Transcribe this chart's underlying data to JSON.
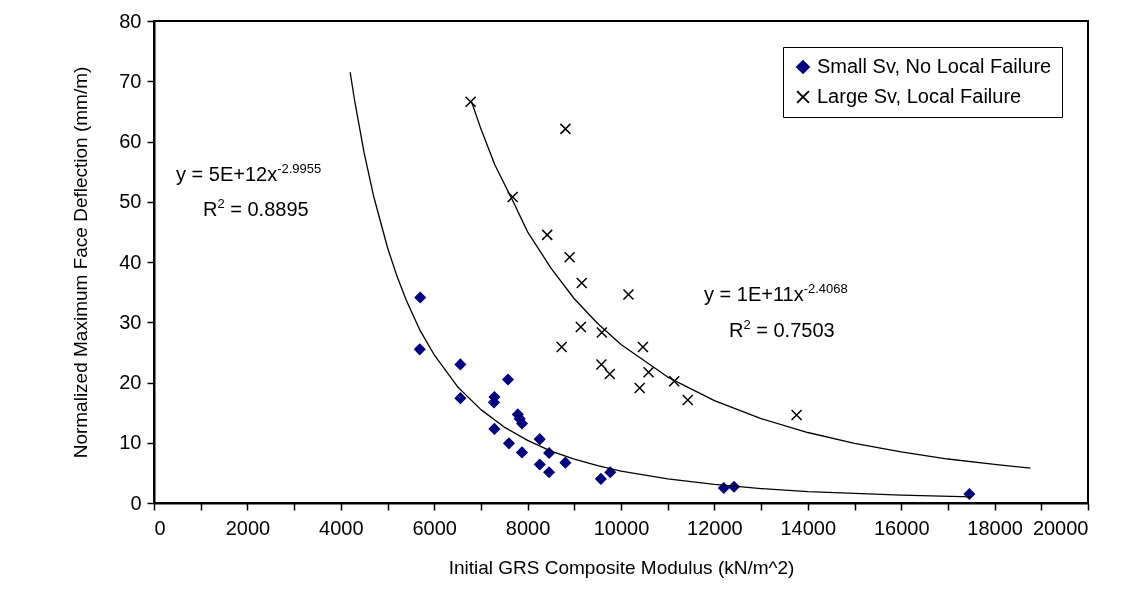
{
  "chart_data": {
    "type": "scatter",
    "xlabel": "Initial GRS Composite Modulus (kN/m^2)",
    "ylabel": "Normalized Maximum Face Deflection (mm/m)",
    "xlim": [
      0,
      20000
    ],
    "ylim": [
      0,
      80
    ],
    "xticks": [
      0,
      {
        "value": 1000,
        "label": null
      },
      2000,
      {
        "value": 3000,
        "label": null
      },
      4000,
      {
        "value": 5000,
        "label": null
      },
      6000,
      {
        "value": 7000,
        "label": null
      },
      8000,
      {
        "value": 9000,
        "label": null
      },
      10000,
      {
        "value": 11000,
        "label": null
      },
      12000,
      {
        "value": 13000,
        "label": null
      },
      14000,
      {
        "value": 15000,
        "label": null
      },
      16000,
      {
        "value": 17000,
        "label": null
      },
      18000,
      {
        "value": 19000,
        "label": null
      },
      20000
    ],
    "yticks": [
      0,
      10,
      20,
      30,
      40,
      50,
      60,
      70,
      80
    ],
    "legend": "top right",
    "annotations": [
      "y = 5E+12x$^{-2.9955}$",
      "R$^{2}$ = 0.8895",
      "y = 1E+11x$^{-2.4068}$",
      "R$^{2}$ = 0.7503"
    ],
    "series": [
      {
        "name": "Small Sv, No Local Failure",
        "marker": "diamond",
        "color": "#000080",
        "x": [
          5700,
          5690,
          6560,
          6560,
          7580,
          7290,
          7280,
          7790,
          7830,
          7880,
          7290,
          7600,
          8260,
          7880,
          8460,
          8260,
          8460,
          8810,
          9570,
          9770,
          12200,
          12420,
          17460
        ],
        "values": [
          34.1,
          25.5,
          23.0,
          17.4,
          20.5,
          17.6,
          16.7,
          14.7,
          14.0,
          13.2,
          12.3,
          9.9,
          10.6,
          8.4,
          8.3,
          6.4,
          5.1,
          6.7,
          4.0,
          5.1,
          2.5,
          2.7,
          1.5
        ]
      },
      {
        "name": "Large Sv, Local Failure",
        "marker": "cross",
        "color": "#000000",
        "x": [
          6780,
          8810,
          7680,
          8420,
          8900,
          9160,
          10160,
          9140,
          9590,
          8730,
          10470,
          9760,
          10590,
          10400,
          11140,
          11430,
          13760,
          9580
        ],
        "values": [
          66.6,
          62.1,
          50.8,
          44.5,
          40.8,
          36.5,
          34.6,
          29.2,
          28.3,
          25.9,
          25.9,
          21.4,
          21.7,
          19.1,
          20.2,
          17.1,
          14.6,
          23.0
        ]
      },
      {
        "type": "line",
        "marker": "none",
        "line_style": "solid",
        "color": "#000000",
        "x": [
          4200,
          4300,
          4500,
          4700,
          5000,
          5200,
          5400,
          5700,
          6000,
          6500,
          7000,
          7500,
          8000,
          8500,
          9000,
          9500,
          10000,
          11000,
          12000,
          13000,
          14000,
          16000,
          17500
        ],
        "values": [
          71.5,
          66.6,
          58.1,
          51.0,
          42.4,
          37.7,
          33.7,
          28.6,
          24.6,
          19.3,
          15.5,
          12.6,
          10.4,
          8.6,
          7.3,
          6.2,
          5.3,
          4.0,
          3.1,
          2.4,
          1.9,
          1.3,
          1.0
        ]
      },
      {
        "type": "line",
        "marker": "none",
        "line_style": "solid",
        "color": "#000000",
        "x": [
          6800,
          7000,
          7300,
          7680,
          8000,
          8500,
          9000,
          9500,
          10000,
          11000,
          12000,
          13000,
          14000,
          15000,
          16000,
          17000,
          18000,
          18770
        ],
        "values": [
          66.6,
          62.1,
          56.1,
          50.2,
          45.0,
          39.0,
          33.9,
          29.8,
          26.3,
          20.9,
          17.0,
          14.0,
          11.7,
          9.9,
          8.5,
          7.3,
          6.4,
          5.8
        ]
      }
    ]
  }
}
